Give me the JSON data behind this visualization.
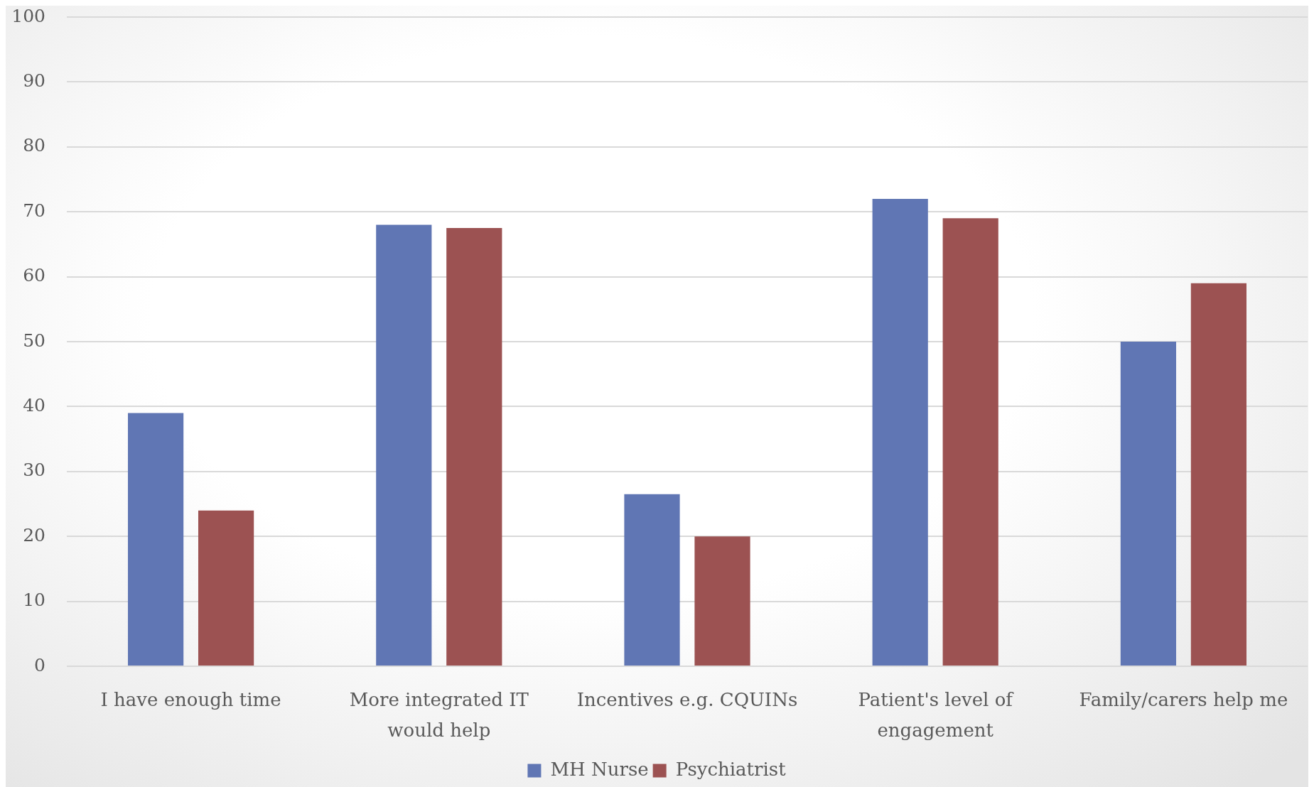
{
  "chart_data": {
    "type": "bar",
    "categories": [
      "I have enough time",
      "More integrated IT would help",
      "Incentives e.g. CQUINs",
      "Patient's level of engagement",
      "Family/carers help me"
    ],
    "series": [
      {
        "name": "MH Nurse",
        "color": "#6076b4",
        "values": [
          39,
          68,
          26.5,
          72,
          50
        ]
      },
      {
        "name": "Psychiatrist",
        "color": "#9c5252",
        "values": [
          24,
          67.5,
          20,
          69,
          59
        ]
      }
    ],
    "ylim": [
      0,
      100
    ],
    "yticks": [
      0,
      10,
      20,
      30,
      40,
      50,
      60,
      70,
      80,
      90,
      100
    ],
    "grid": "y",
    "legend": "bottom"
  }
}
